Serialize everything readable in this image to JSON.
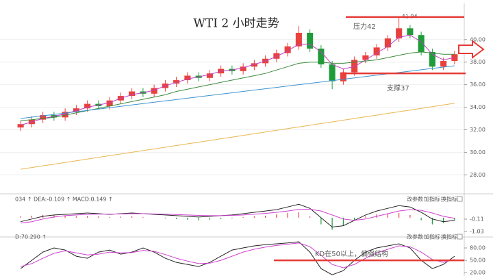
{
  "chart_data": [
    {
      "type": "candlestick",
      "title": "WTI 2 小时走势",
      "open": [
        32.2,
        32.5,
        32.9,
        33.3,
        33.1,
        33.6,
        33.9,
        34.3,
        34.1,
        34.6,
        35.0,
        35.4,
        35.2,
        35.7,
        36.1,
        36.4,
        36.8,
        36.6,
        37.0,
        37.4,
        37.2,
        37.6,
        37.9,
        38.3,
        38.8,
        39.4,
        40.6,
        39.2,
        37.8,
        36.3,
        37.1,
        38.2,
        38.6,
        39.3,
        40.1,
        41.0,
        40.4,
        38.9,
        37.6,
        38.1
      ],
      "high": [
        32.8,
        33.2,
        33.6,
        33.6,
        33.9,
        34.2,
        34.6,
        34.6,
        34.9,
        35.3,
        35.7,
        35.7,
        36.0,
        36.4,
        36.7,
        37.1,
        37.1,
        37.3,
        37.7,
        37.7,
        37.9,
        38.2,
        38.6,
        39.1,
        39.7,
        41.2,
        40.9,
        39.5,
        38.1,
        37.4,
        38.5,
        38.9,
        39.6,
        40.4,
        41.94,
        41.3,
        40.7,
        39.2,
        38.4,
        39.0
      ],
      "low": [
        31.9,
        32.2,
        32.6,
        32.8,
        32.8,
        33.3,
        33.6,
        33.8,
        33.8,
        34.3,
        34.7,
        34.9,
        34.9,
        35.4,
        35.8,
        36.1,
        36.3,
        36.3,
        36.7,
        36.9,
        36.9,
        37.3,
        37.6,
        38.0,
        38.5,
        39.1,
        38.9,
        37.5,
        35.6,
        36.0,
        36.8,
        37.9,
        38.3,
        39.0,
        39.8,
        40.1,
        38.6,
        37.3,
        37.3,
        37.8
      ],
      "close": [
        32.5,
        32.9,
        33.3,
        33.1,
        33.6,
        33.9,
        34.3,
        34.1,
        34.6,
        35.0,
        35.4,
        35.2,
        35.7,
        36.1,
        36.4,
        36.8,
        36.6,
        37.0,
        37.4,
        37.2,
        37.6,
        37.9,
        38.3,
        38.8,
        39.4,
        40.6,
        39.2,
        37.8,
        36.3,
        37.1,
        38.2,
        38.6,
        39.3,
        40.1,
        41.0,
        40.4,
        38.9,
        37.6,
        38.1,
        38.7
      ],
      "up_color": "#e8413c",
      "down_color": "#1f9c3a",
      "series": [
        {
          "color": "#c040c0",
          "values": [
            32.4,
            32.7,
            33.0,
            33.2,
            33.4,
            33.7,
            34.0,
            34.2,
            34.4,
            34.8,
            35.1,
            35.3,
            35.5,
            35.9,
            36.2,
            36.5,
            36.7,
            36.9,
            37.2,
            37.3,
            37.5,
            37.8,
            38.1,
            38.5,
            39.0,
            39.6,
            39.6,
            38.9,
            37.8,
            37.4,
            37.6,
            38.2,
            38.8,
            39.4,
            40.2,
            40.4,
            39.8,
            38.7,
            38.2,
            38.4
          ]
        },
        {
          "color": "#3c8a3c",
          "values": [
            32.8,
            32.9,
            33.0,
            33.1,
            33.3,
            33.5,
            33.7,
            33.9,
            34.1,
            34.3,
            34.5,
            34.7,
            34.9,
            35.1,
            35.4,
            35.6,
            35.8,
            36.0,
            36.2,
            36.4,
            36.6,
            36.8,
            37.0,
            37.3,
            37.6,
            37.9,
            38.0,
            38.0,
            37.9,
            37.9,
            38.0,
            38.1,
            38.2,
            38.4,
            38.6,
            38.8,
            38.9,
            38.8,
            38.7,
            38.7
          ]
        },
        {
          "color": "#3a93d0",
          "values": [
            33.0,
            33.12,
            33.24,
            33.36,
            33.48,
            33.6,
            33.72,
            33.84,
            33.96,
            34.08,
            34.2,
            34.32,
            34.44,
            34.56,
            34.68,
            34.8,
            34.92,
            35.04,
            35.16,
            35.28,
            35.4,
            35.52,
            35.64,
            35.76,
            35.88,
            36.0,
            36.12,
            36.24,
            36.36,
            36.48,
            36.6,
            36.72,
            36.84,
            36.96,
            37.08,
            37.2,
            37.32,
            37.44,
            37.56,
            37.68
          ]
        },
        {
          "color": "#e8b650",
          "values": [
            28.5,
            28.65,
            28.8,
            28.95,
            29.1,
            29.25,
            29.4,
            29.55,
            29.7,
            29.85,
            30.0,
            30.15,
            30.3,
            30.45,
            30.6,
            30.75,
            30.9,
            31.05,
            31.2,
            31.35,
            31.5,
            31.65,
            31.8,
            31.95,
            32.1,
            32.25,
            32.4,
            32.55,
            32.7,
            32.85,
            33.0,
            33.15,
            33.3,
            33.45,
            33.6,
            33.75,
            33.9,
            34.05,
            34.2,
            34.35
          ]
        }
      ],
      "levels": [
        {
          "value": 42,
          "label": "压力42",
          "color": "#e53935"
        },
        {
          "value": 37,
          "label": "支撑37",
          "color": "#e53935"
        }
      ],
      "ylim": [
        26.5,
        42.6
      ],
      "yticks": [
        {
          "value": 40,
          "label": "40.00"
        },
        {
          "value": 38,
          "label": "38.00"
        },
        {
          "value": 36,
          "label": "36.00"
        },
        {
          "value": 34,
          "label": "34.00"
        },
        {
          "value": 32,
          "label": "32.00"
        },
        {
          "value": 30,
          "label": "30.00"
        },
        {
          "value": 28,
          "label": "28.00"
        }
      ],
      "grid": true
    },
    {
      "type": "bar",
      "header": "034 ↑ DEA:-0.109 ↑ MACD:0.149 ↑",
      "buttons": [
        "改参数",
        "加指标",
        "换指标"
      ],
      "values": [
        0.1,
        0.15,
        0.2,
        0.2,
        0.15,
        0.1,
        0.12,
        0.1,
        0.05,
        0.08,
        0.1,
        0.05,
        0.0,
        -0.05,
        -0.1,
        -0.15,
        -0.2,
        -0.15,
        -0.1,
        -0.05,
        0.05,
        0.1,
        0.15,
        0.25,
        0.35,
        0.4,
        0.1,
        -0.5,
        -0.9,
        -0.6,
        -0.2,
        0.1,
        0.25,
        0.3,
        0.35,
        0.2,
        -0.2,
        -0.5,
        -0.4,
        -0.2
      ],
      "pos_color": "#e8413c",
      "neg_color": "#1f9c3a",
      "series": [
        {
          "color": "#222222",
          "values": [
            -0.3,
            -0.1,
            0.1,
            0.2,
            0.25,
            0.3,
            0.35,
            0.3,
            0.25,
            0.3,
            0.35,
            0.3,
            0.25,
            0.2,
            0.15,
            0.1,
            0.05,
            0.1,
            0.15,
            0.2,
            0.3,
            0.4,
            0.5,
            0.6,
            0.8,
            1.0,
            0.7,
            0.0,
            -0.7,
            -0.6,
            -0.2,
            0.2,
            0.5,
            0.7,
            0.9,
            0.8,
            0.4,
            -0.1,
            -0.3,
            -0.2
          ]
        },
        {
          "color": "#d040d0",
          "values": [
            -0.4,
            -0.3,
            -0.1,
            0.05,
            0.15,
            0.2,
            0.25,
            0.27,
            0.27,
            0.28,
            0.3,
            0.3,
            0.28,
            0.26,
            0.23,
            0.2,
            0.17,
            0.15,
            0.15,
            0.17,
            0.2,
            0.26,
            0.32,
            0.4,
            0.5,
            0.62,
            0.64,
            0.5,
            0.2,
            -0.1,
            -0.2,
            -0.1,
            0.1,
            0.3,
            0.5,
            0.6,
            0.55,
            0.35,
            0.1,
            -0.05
          ]
        }
      ],
      "ylim": [
        -1.39,
        1.17
      ],
      "yticks": [
        -0.11,
        -1.03
      ]
    },
    {
      "type": "line",
      "header": "D:70.290 ↑",
      "buttons": [
        "改参数",
        "加指标",
        "换指标"
      ],
      "series": [
        {
          "color": "#222222",
          "values": [
            30,
            50,
            70,
            80,
            75,
            60,
            55,
            70,
            75,
            65,
            70,
            80,
            70,
            55,
            45,
            40,
            35,
            45,
            60,
            75,
            80,
            85,
            88,
            90,
            92,
            95,
            70,
            30,
            15,
            25,
            50,
            70,
            80,
            85,
            90,
            80,
            50,
            30,
            40,
            60
          ]
        },
        {
          "color": "#d040d0",
          "values": [
            35,
            42,
            55,
            67,
            73,
            68,
            63,
            65,
            70,
            68,
            69,
            74,
            72,
            64,
            55,
            48,
            42,
            43,
            50,
            60,
            70,
            77,
            82,
            86,
            89,
            92,
            83,
            62,
            40,
            32,
            40,
            55,
            68,
            77,
            85,
            83,
            70,
            52,
            45,
            52
          ]
        }
      ],
      "levels": [
        {
          "value": 50,
          "label": "KD在50以上，偏强结构",
          "color": "#e53935"
        }
      ],
      "ylim": [
        17,
        100
      ],
      "yticks": [
        {
          "value": 80,
          "label": "80.00"
        },
        {
          "value": 50,
          "label": "50.00"
        },
        {
          "value": 20,
          "label": "20.00"
        }
      ]
    }
  ]
}
